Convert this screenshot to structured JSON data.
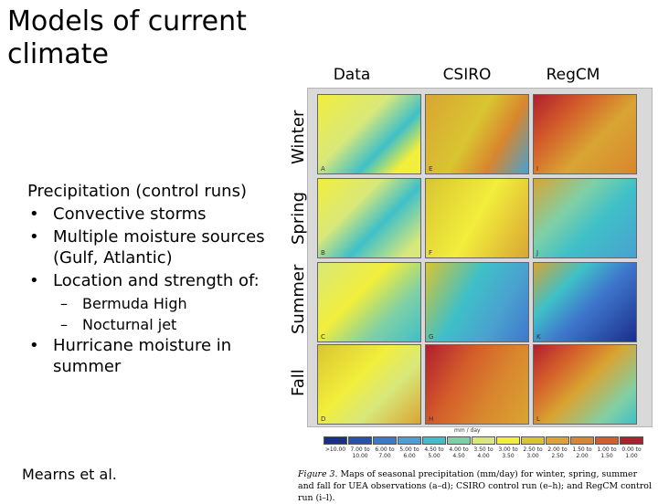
{
  "title": "Models of current climate",
  "bullets": {
    "lead": "Precipitation (control runs)",
    "items": [
      "Convective storms",
      "Multiple moisture sources (Gulf, Atlantic)",
      "Location and strength of:",
      "Hurricane moisture in summer"
    ],
    "subitems": [
      "Bermuda High",
      "Nocturnal jet"
    ]
  },
  "credit": "Mearns et al.",
  "figure": {
    "columns": [
      "Data",
      "CSIRO",
      "RegCM"
    ],
    "rows": [
      "Winter",
      "Spring",
      "Summer",
      "Fall"
    ],
    "panel_letters": [
      "A",
      "E",
      "I",
      "B",
      "F",
      "J",
      "C",
      "G",
      "K",
      "D",
      "H",
      "L"
    ],
    "legend_unit": "mm / day",
    "legend": [
      {
        "label": ">10.00",
        "color": "#1a2e8c"
      },
      {
        "label": "7.00 to 10.00",
        "color": "#2a4fb0"
      },
      {
        "label": "6.00 to 7.00",
        "color": "#3f77cc"
      },
      {
        "label": "5.00 to 6.00",
        "color": "#4aa1cf"
      },
      {
        "label": "4.50 to 5.00",
        "color": "#3fc0c8"
      },
      {
        "label": "4.00 to 4.50",
        "color": "#7fd0a6"
      },
      {
        "label": "3.50 to 4.00",
        "color": "#d8e87a"
      },
      {
        "label": "3.00 to 3.50",
        "color": "#f2ee3c"
      },
      {
        "label": "2.50 to 3.00",
        "color": "#d9c531"
      },
      {
        "label": "2.00 to 2.50",
        "color": "#d9a533"
      },
      {
        "label": "1.50 to 2.00",
        "color": "#d9862e"
      },
      {
        "label": "1.00 to 1.50",
        "color": "#d45d2a"
      },
      {
        "label": "0.00 to 1.00",
        "color": "#b01f2e"
      }
    ],
    "caption_label": "Figure 3.",
    "caption_text": "Maps of seasonal precipitation (mm/day) for winter, spring, summer and fall for UEA observations (a–d); CSIRO control run (e–h); and RegCM control run (i–l)."
  }
}
